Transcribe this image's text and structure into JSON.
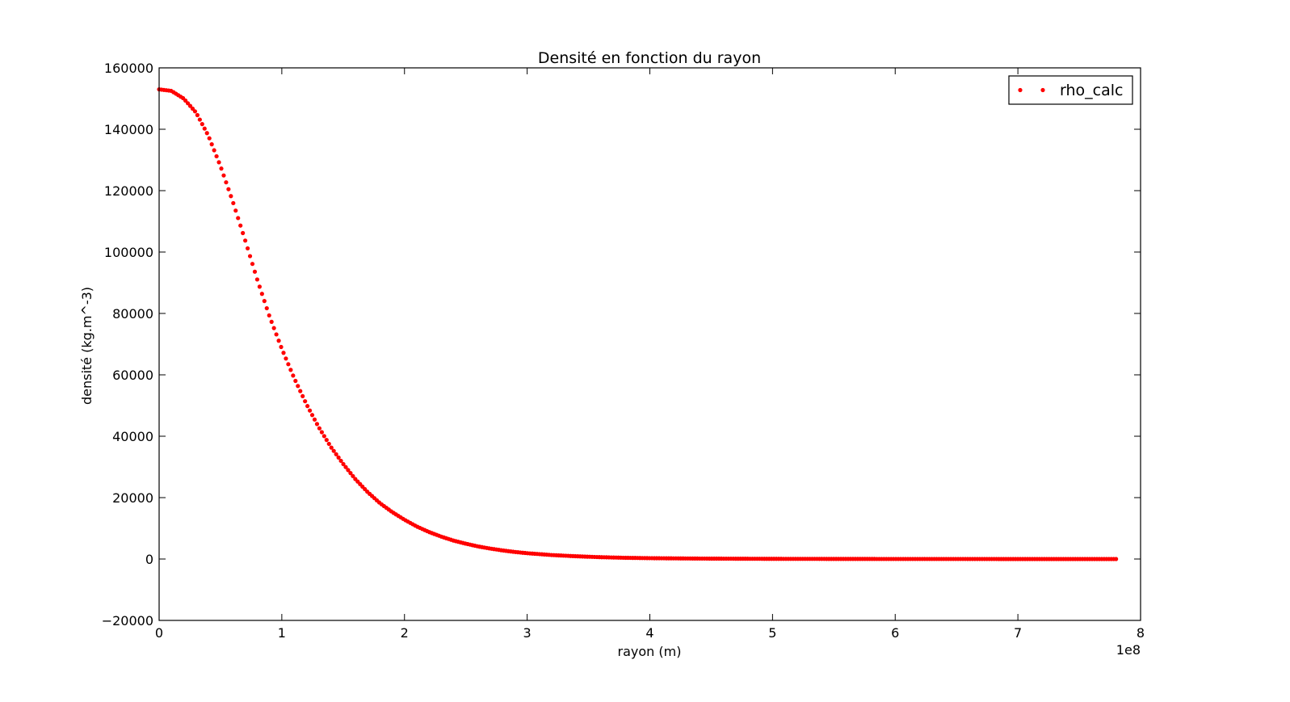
{
  "chart_data": {
    "type": "scatter",
    "title": "Densité en fonction du rayon",
    "xlabel": "rayon (m)",
    "ylabel": "densité (kg.m^-3)",
    "x_offset_label": "1e8",
    "xlim": [
      0,
      8
    ],
    "ylim": [
      -20000,
      160000
    ],
    "xticks": [
      "0",
      "1",
      "2",
      "3",
      "4",
      "5",
      "6",
      "7",
      "8"
    ],
    "yticks": [
      "−20000",
      "0",
      "20000",
      "40000",
      "60000",
      "80000",
      "100000",
      "120000",
      "140000",
      "160000"
    ],
    "grid": false,
    "legend_position": "top-right",
    "series": [
      {
        "name": "rho_calc",
        "color": "#ff0000",
        "marker": "dot",
        "x_range": [
          0,
          7.8
        ],
        "points": [
          [
            0.0,
            153000
          ],
          [
            0.1,
            152500
          ],
          [
            0.2,
            150000
          ],
          [
            0.3,
            145500
          ],
          [
            0.4,
            138000
          ],
          [
            0.5,
            128000
          ],
          [
            0.6,
            116500
          ],
          [
            0.7,
            104000
          ],
          [
            0.8,
            91000
          ],
          [
            0.9,
            79000
          ],
          [
            1.0,
            68500
          ],
          [
            1.1,
            59000
          ],
          [
            1.2,
            50500
          ],
          [
            1.3,
            43000
          ],
          [
            1.4,
            36500
          ],
          [
            1.5,
            31000
          ],
          [
            1.6,
            26000
          ],
          [
            1.7,
            21800
          ],
          [
            1.8,
            18200
          ],
          [
            1.9,
            15300
          ],
          [
            2.0,
            12800
          ],
          [
            2.1,
            10600
          ],
          [
            2.2,
            8800
          ],
          [
            2.3,
            7300
          ],
          [
            2.4,
            6000
          ],
          [
            2.5,
            5000
          ],
          [
            2.6,
            4100
          ],
          [
            2.7,
            3400
          ],
          [
            2.8,
            2800
          ],
          [
            2.9,
            2300
          ],
          [
            3.0,
            1900
          ],
          [
            3.2,
            1300
          ],
          [
            3.4,
            900
          ],
          [
            3.6,
            600
          ],
          [
            3.8,
            400
          ],
          [
            4.0,
            280
          ],
          [
            4.4,
            150
          ],
          [
            5.0,
            60
          ],
          [
            6.0,
            15
          ],
          [
            7.0,
            5
          ],
          [
            7.8,
            0
          ]
        ]
      }
    ]
  }
}
